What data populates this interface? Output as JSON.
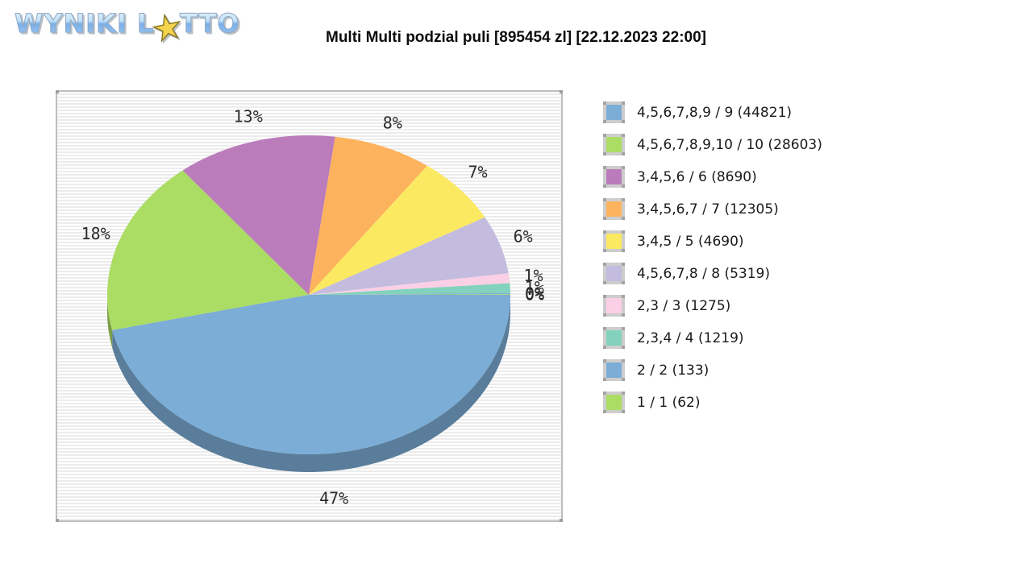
{
  "logo": {
    "text_left": "WYNIKI L",
    "text_right": "TTO",
    "star": "★"
  },
  "title": "Multi Multi podzial puli [895454 zl] [22.12.2023 22:00]",
  "chart_data": {
    "type": "pie",
    "style": "3d",
    "title": "Multi Multi podzial puli [895454 zl] [22.12.2023 22:00]",
    "pool_amount_label": "895454 zl",
    "draw_datetime_label": "22.12.2023 22:00",
    "legend_position": "right",
    "plot_background": "striped",
    "slices": [
      {
        "label": "4,5,6,7,8,9 / 9",
        "winners": 44821,
        "percent_label": "47%",
        "weight": 47,
        "color": "#7badd6"
      },
      {
        "label": "4,5,6,7,8,9,10 / 10",
        "winners": 28603,
        "percent_label": "18%",
        "weight": 18,
        "color": "#abdc64"
      },
      {
        "label": "3,4,5,6 / 6",
        "winners": 8690,
        "percent_label": "13%",
        "weight": 13,
        "color": "#bb7cbb"
      },
      {
        "label": "3,4,5,6,7 / 7",
        "winners": 12305,
        "percent_label": "8%",
        "weight": 8,
        "color": "#fdb35d"
      },
      {
        "label": "3,4,5 / 5",
        "winners": 4690,
        "percent_label": "7%",
        "weight": 7,
        "color": "#fae961"
      },
      {
        "label": "4,5,6,7,8 / 8",
        "winners": 5319,
        "percent_label": "6%",
        "weight": 6,
        "color": "#c3bcdf"
      },
      {
        "label": "2,3 / 3",
        "winners": 1275,
        "percent_label": "1%",
        "weight": 1,
        "color": "#fbcfe5"
      },
      {
        "label": "2,3,4 / 4",
        "winners": 1219,
        "percent_label": "1%",
        "weight": 1,
        "color": "#82d2bd"
      },
      {
        "label": "2 / 2",
        "winners": 133,
        "percent_label": "0%",
        "weight": 0.12,
        "color": "#7badd6"
      },
      {
        "label": "1 / 1",
        "winners": 62,
        "percent_label": "0%",
        "weight": 0.06,
        "color": "#abdc64"
      }
    ]
  }
}
